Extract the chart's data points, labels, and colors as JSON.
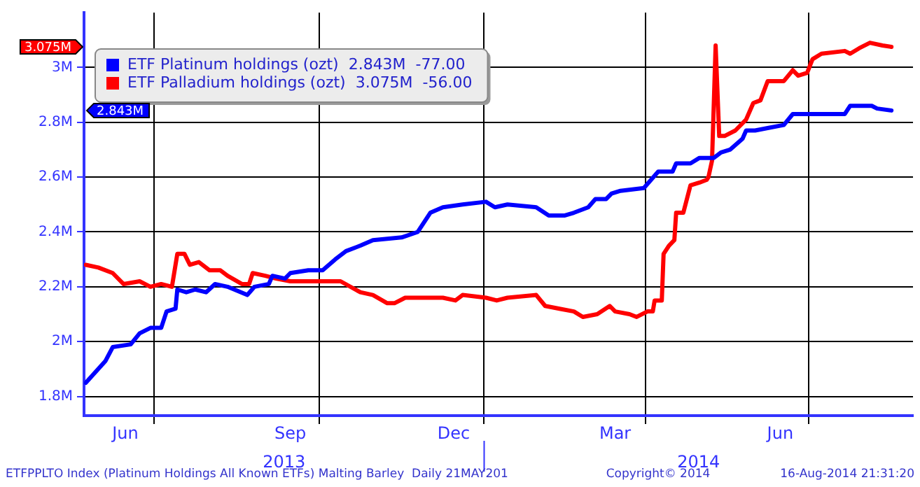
{
  "chart_data": {
    "type": "line",
    "ylim": [
      1.73,
      3.2
    ],
    "yticks": [
      {
        "value": 1.8,
        "label": "1.8M"
      },
      {
        "value": 2,
        "label": "2M"
      },
      {
        "value": 2.2,
        "label": "2.2M"
      },
      {
        "value": 2.4,
        "label": "2.4M"
      },
      {
        "value": 2.6,
        "label": "2.6M"
      },
      {
        "value": 2.8,
        "label": "2.8M"
      },
      {
        "value": 3,
        "label": "3M"
      }
    ],
    "xlim": [
      "2013-05-23",
      "2014-08-28"
    ],
    "xticks": [
      {
        "value": "2013-06-15",
        "label": "Jun"
      },
      {
        "value": "2013-07-01",
        "label": null
      },
      {
        "value": "2013-09-15",
        "label": "Sep"
      },
      {
        "value": "2013-10-01",
        "label": null
      },
      {
        "value": "2013-12-15",
        "label": "Dec"
      },
      {
        "value": "2014-01-01",
        "label": null
      },
      {
        "value": "2014-03-15",
        "label": "Mar"
      },
      {
        "value": "2014-04-01",
        "label": null
      },
      {
        "value": "2014-06-15",
        "label": "Jun"
      },
      {
        "value": "2014-07-01",
        "label": null
      }
    ],
    "grid": true,
    "legend": "top left",
    "line_style": "solid",
    "marker": "none",
    "series": [
      {
        "name": "ETF Platinum holdings (ozt)  2.843M  -77.00",
        "color": "#0000ff",
        "x": [
          "2013-05-24",
          "2013-06-04",
          "2013-06-08",
          "2013-06-18",
          "2013-06-23",
          "2013-06-29",
          "2013-07-05",
          "2013-07-08",
          "2013-07-13",
          "2013-07-14",
          "2013-07-19",
          "2013-07-24",
          "2013-07-30",
          "2013-08-04",
          "2013-08-11",
          "2013-08-22",
          "2013-08-26",
          "2013-09-03",
          "2013-09-05",
          "2013-09-12",
          "2013-09-15",
          "2013-09-25",
          "2013-10-03",
          "2013-10-10",
          "2013-10-16",
          "2013-10-24",
          "2013-10-31",
          "2013-11-16",
          "2013-11-25",
          "2013-12-02",
          "2013-12-09",
          "2013-12-20",
          "2014-01-02",
          "2014-01-07",
          "2014-01-14",
          "2014-01-30",
          "2014-02-06",
          "2014-02-15",
          "2014-02-20",
          "2014-02-28",
          "2014-03-04",
          "2014-03-10",
          "2014-03-13",
          "2014-03-18",
          "2014-03-31",
          "2014-04-08",
          "2014-04-16",
          "2014-04-18",
          "2014-04-26",
          "2014-05-01",
          "2014-05-09",
          "2014-05-13",
          "2014-05-18",
          "2014-05-25",
          "2014-05-27",
          "2014-06-01",
          "2014-06-09",
          "2014-06-17",
          "2014-06-22",
          "2014-07-05",
          "2014-07-21",
          "2014-07-24",
          "2014-08-05",
          "2014-08-08",
          "2014-08-16"
        ],
        "values": [
          1.85,
          1.93,
          1.98,
          1.99,
          2.03,
          2.05,
          2.05,
          2.11,
          2.12,
          2.19,
          2.18,
          2.19,
          2.18,
          2.21,
          2.2,
          2.17,
          2.2,
          2.21,
          2.24,
          2.23,
          2.25,
          2.26,
          2.26,
          2.3,
          2.33,
          2.35,
          2.37,
          2.38,
          2.4,
          2.47,
          2.49,
          2.5,
          2.51,
          2.49,
          2.5,
          2.49,
          2.46,
          2.46,
          2.47,
          2.49,
          2.52,
          2.52,
          2.54,
          2.55,
          2.56,
          2.62,
          2.62,
          2.65,
          2.65,
          2.67,
          2.67,
          2.69,
          2.7,
          2.74,
          2.77,
          2.77,
          2.78,
          2.79,
          2.83,
          2.83,
          2.83,
          2.86,
          2.86,
          2.85,
          2.843
        ]
      },
      {
        "name": "ETF Palladium holdings (ozt)  3.075M  -56.00",
        "color": "#ff0000",
        "x": [
          "2013-05-24",
          "2013-05-31",
          "2013-06-08",
          "2013-06-14",
          "2013-06-23",
          "2013-06-29",
          "2013-07-05",
          "2013-07-11",
          "2013-07-14",
          "2013-07-18",
          "2013-07-21",
          "2013-07-26",
          "2013-08-01",
          "2013-08-07",
          "2013-08-11",
          "2013-08-19",
          "2013-08-23",
          "2013-08-25",
          "2013-09-01",
          "2013-09-07",
          "2013-09-15",
          "2013-09-25",
          "2013-09-30",
          "2013-10-13",
          "2013-10-24",
          "2013-10-31",
          "2013-11-08",
          "2013-11-12",
          "2013-11-18",
          "2013-12-09",
          "2013-12-16",
          "2013-12-20",
          "2014-01-02",
          "2014-01-08",
          "2014-01-14",
          "2014-01-30",
          "2014-02-04",
          "2014-02-12",
          "2014-02-20",
          "2014-02-25",
          "2014-03-05",
          "2014-03-12",
          "2014-03-15",
          "2014-03-23",
          "2014-03-27",
          "2014-04-02",
          "2014-04-05",
          "2014-04-06",
          "2014-04-10",
          "2014-04-11",
          "2014-04-14",
          "2014-04-17",
          "2014-04-18",
          "2014-04-22",
          "2014-04-26",
          "2014-05-01",
          "2014-05-05",
          "2014-05-06",
          "2014-05-08",
          "2014-05-10",
          "2014-05-12",
          "2014-05-15",
          "2014-05-21",
          "2014-05-27",
          "2014-05-31",
          "2014-06-04",
          "2014-06-08",
          "2014-06-11",
          "2014-06-17",
          "2014-06-22",
          "2014-06-25",
          "2014-06-30",
          "2014-07-03",
          "2014-07-08",
          "2014-07-21",
          "2014-07-24",
          "2014-07-29",
          "2014-08-04",
          "2014-08-11",
          "2014-08-16"
        ],
        "values": [
          2.28,
          2.27,
          2.25,
          2.21,
          2.22,
          2.2,
          2.21,
          2.2,
          2.32,
          2.32,
          2.28,
          2.29,
          2.26,
          2.26,
          2.24,
          2.21,
          2.21,
          2.25,
          2.24,
          2.23,
          2.22,
          2.22,
          2.22,
          2.22,
          2.18,
          2.17,
          2.14,
          2.14,
          2.16,
          2.16,
          2.15,
          2.17,
          2.16,
          2.15,
          2.16,
          2.17,
          2.13,
          2.12,
          2.11,
          2.09,
          2.1,
          2.13,
          2.11,
          2.1,
          2.09,
          2.11,
          2.11,
          2.15,
          2.15,
          2.32,
          2.35,
          2.37,
          2.47,
          2.47,
          2.57,
          2.58,
          2.59,
          2.6,
          2.66,
          3.08,
          2.75,
          2.75,
          2.77,
          2.81,
          2.87,
          2.88,
          2.95,
          2.95,
          2.95,
          2.99,
          2.97,
          2.98,
          3.03,
          3.05,
          3.06,
          3.05,
          3.07,
          3.09,
          3.08,
          3.075
        ]
      }
    ],
    "annotations": [
      "2.843M",
      "3.075M",
      "2013",
      "2014",
      "ETFPPLTO Index (Platinum Holdings All Known ETFs) Malting Barley  Daily 21MAY201",
      "Copyright© 2014",
      "16-Aug-2014 21:31:20"
    ]
  }
}
